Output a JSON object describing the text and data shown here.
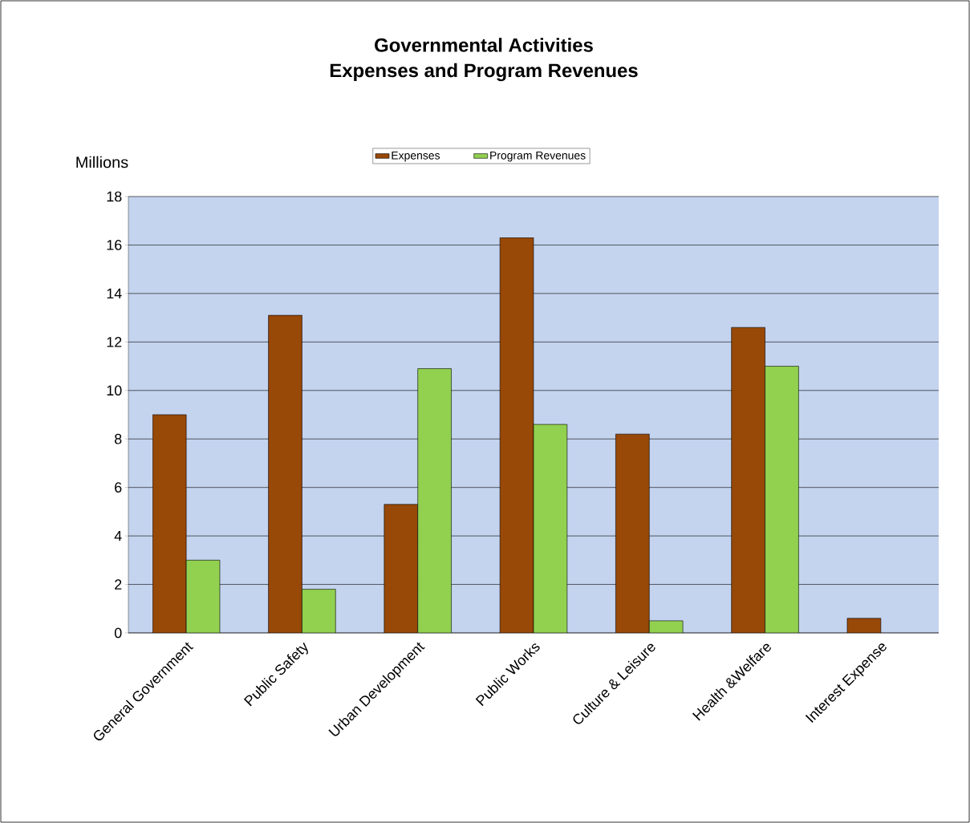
{
  "chart_data": {
    "type": "bar",
    "title": "Governmental Activities",
    "subtitle": "Expenses and Program Revenues",
    "ylabel": "Millions",
    "categories": [
      "General Government",
      "Public Safety",
      "Urban Development",
      "Public Works",
      "Culture & Leisure",
      "Health &Welfare",
      "Interest Expense"
    ],
    "series": [
      {
        "name": "Expenses",
        "color": "#984807",
        "values": [
          9.0,
          13.1,
          5.3,
          16.3,
          8.2,
          12.6,
          0.6
        ]
      },
      {
        "name": "Program Revenues",
        "color": "#92d050",
        "values": [
          3.0,
          1.8,
          10.9,
          8.6,
          0.5,
          11.0,
          null
        ]
      }
    ],
    "ylim": [
      0,
      18
    ],
    "yticks": [
      0,
      2,
      4,
      6,
      8,
      10,
      12,
      14,
      16,
      18
    ],
    "grid": "y",
    "legend": "top"
  }
}
